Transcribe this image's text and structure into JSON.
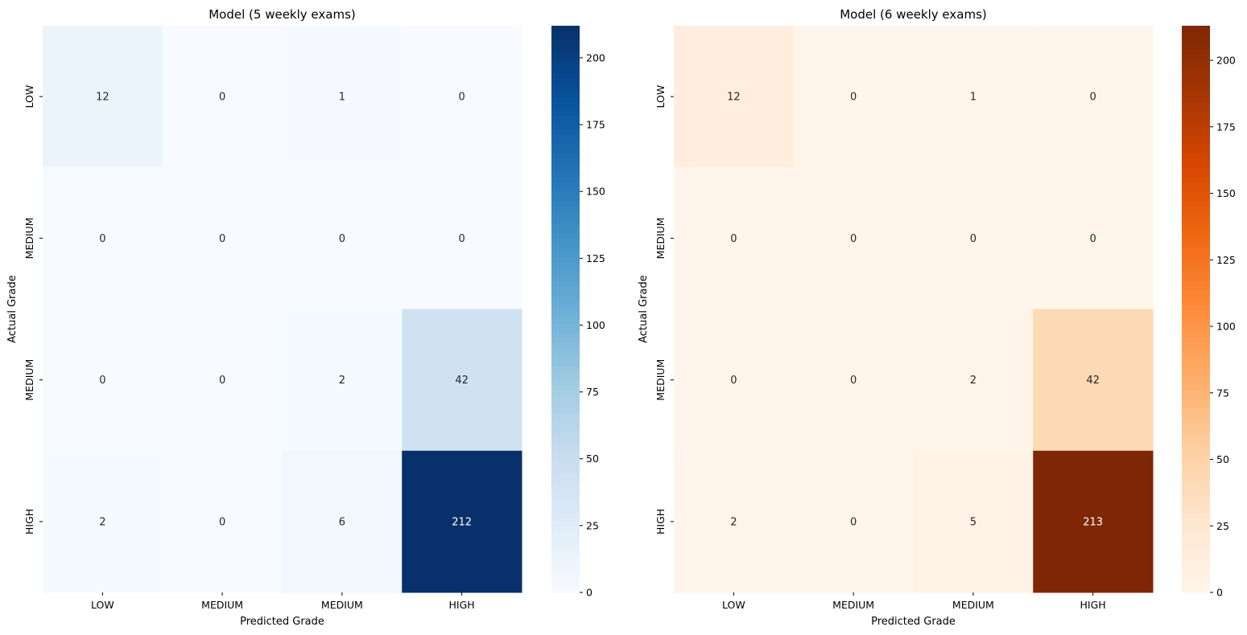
{
  "chart_data": [
    {
      "type": "heatmap",
      "title": "Model (5 weekly exams)",
      "xlabel": "Predicted Grade",
      "ylabel": "Actual Grade",
      "x_categories": [
        "LOW",
        "MEDIUM",
        "MEDIUM",
        "HIGH"
      ],
      "y_categories": [
        "LOW",
        "MEDIUM",
        "MEDIUM",
        "HIGH"
      ],
      "values": [
        [
          12,
          0,
          1,
          0
        ],
        [
          0,
          0,
          0,
          0
        ],
        [
          0,
          0,
          2,
          42
        ],
        [
          2,
          0,
          6,
          212
        ]
      ],
      "colormap": "Blues",
      "colorbar_ticks": [
        0,
        25,
        50,
        75,
        100,
        125,
        150,
        175,
        200
      ],
      "colorbar_range": [
        0,
        212
      ]
    },
    {
      "type": "heatmap",
      "title": "Model (6 weekly exams)",
      "xlabel": "Predicted Grade",
      "ylabel": "Actual Grade",
      "x_categories": [
        "LOW",
        "MEDIUM",
        "MEDIUM",
        "HIGH"
      ],
      "y_categories": [
        "LOW",
        "MEDIUM",
        "MEDIUM",
        "HIGH"
      ],
      "values": [
        [
          12,
          0,
          1,
          0
        ],
        [
          0,
          0,
          0,
          0
        ],
        [
          0,
          0,
          2,
          42
        ],
        [
          2,
          0,
          5,
          213
        ]
      ],
      "colormap": "Oranges",
      "colorbar_ticks": [
        0,
        25,
        50,
        75,
        100,
        125,
        150,
        175,
        200
      ],
      "colorbar_range": [
        0,
        213
      ]
    }
  ]
}
